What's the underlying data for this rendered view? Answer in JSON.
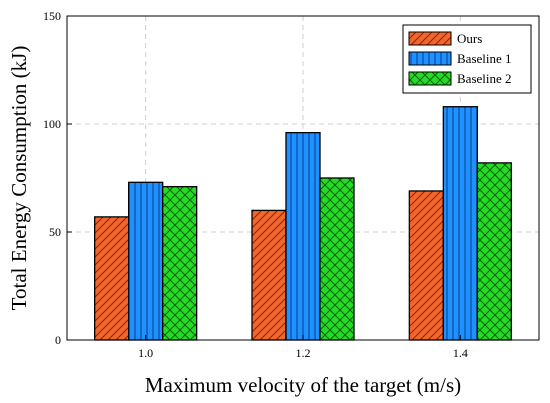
{
  "chart_data": {
    "type": "bar",
    "title": "",
    "xlabel": "Maximum velocity of the target (m/s)",
    "ylabel": "Total Energy Consumption (kJ)",
    "categories": [
      "1.0",
      "1.2",
      "1.4"
    ],
    "ylim": [
      0,
      150
    ],
    "yticks": [
      "0",
      "50",
      "100",
      "150"
    ],
    "grid": true,
    "legend_position": "top-right",
    "series": [
      {
        "name": "Ours",
        "values": [
          57,
          60,
          69
        ],
        "color": "#f4652a",
        "pattern": "diagonal-hatch"
      },
      {
        "name": "Baseline 1",
        "values": [
          73,
          96,
          108
        ],
        "color": "#1e90ff",
        "pattern": "vertical-lines"
      },
      {
        "name": "Baseline 2",
        "values": [
          71,
          75,
          82
        ],
        "color": "#22dd22",
        "pattern": "crosshatch"
      }
    ]
  }
}
